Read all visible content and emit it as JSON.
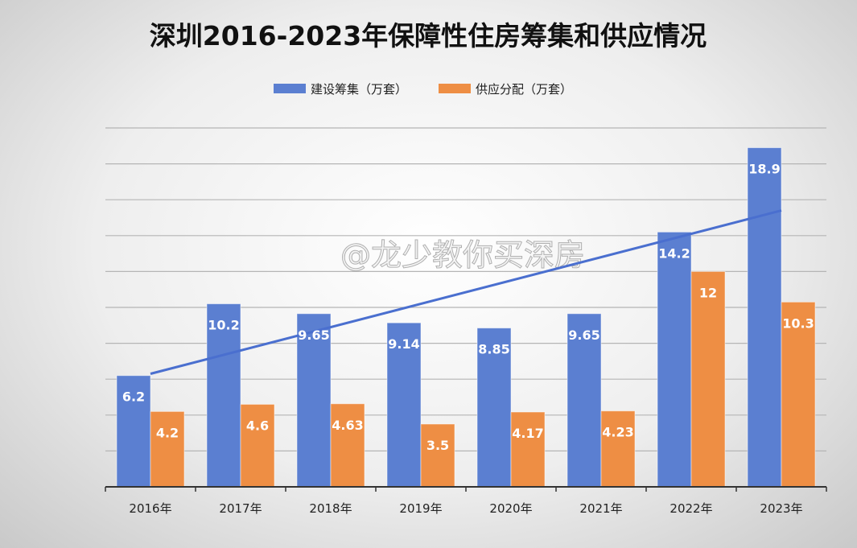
{
  "chart_data": {
    "type": "bar",
    "title": "深圳2016-2023年保障性住房筹集和供应情况",
    "categories": [
      "2016年",
      "2017年",
      "2018年",
      "2019年",
      "2020年",
      "2021年",
      "2022年",
      "2023年"
    ],
    "series": [
      {
        "name": "建设筹集（万套）",
        "color": "#5b7fd1",
        "values": [
          6.2,
          10.2,
          9.65,
          9.14,
          8.85,
          9.65,
          14.2,
          18.9
        ]
      },
      {
        "name": "供应分配（万套）",
        "color": "#ee8e44",
        "values": [
          4.2,
          4.6,
          4.63,
          3.5,
          4.17,
          4.23,
          12,
          10.3
        ]
      }
    ],
    "trendline": {
      "series": "建设筹集（万套）",
      "type": "linear",
      "color": "#4a6fcf",
      "start": 6.3,
      "end": 15.4
    },
    "ylim": [
      0,
      20
    ],
    "grid": true,
    "legend": "top",
    "watermark": "@龙少教你买深房"
  }
}
